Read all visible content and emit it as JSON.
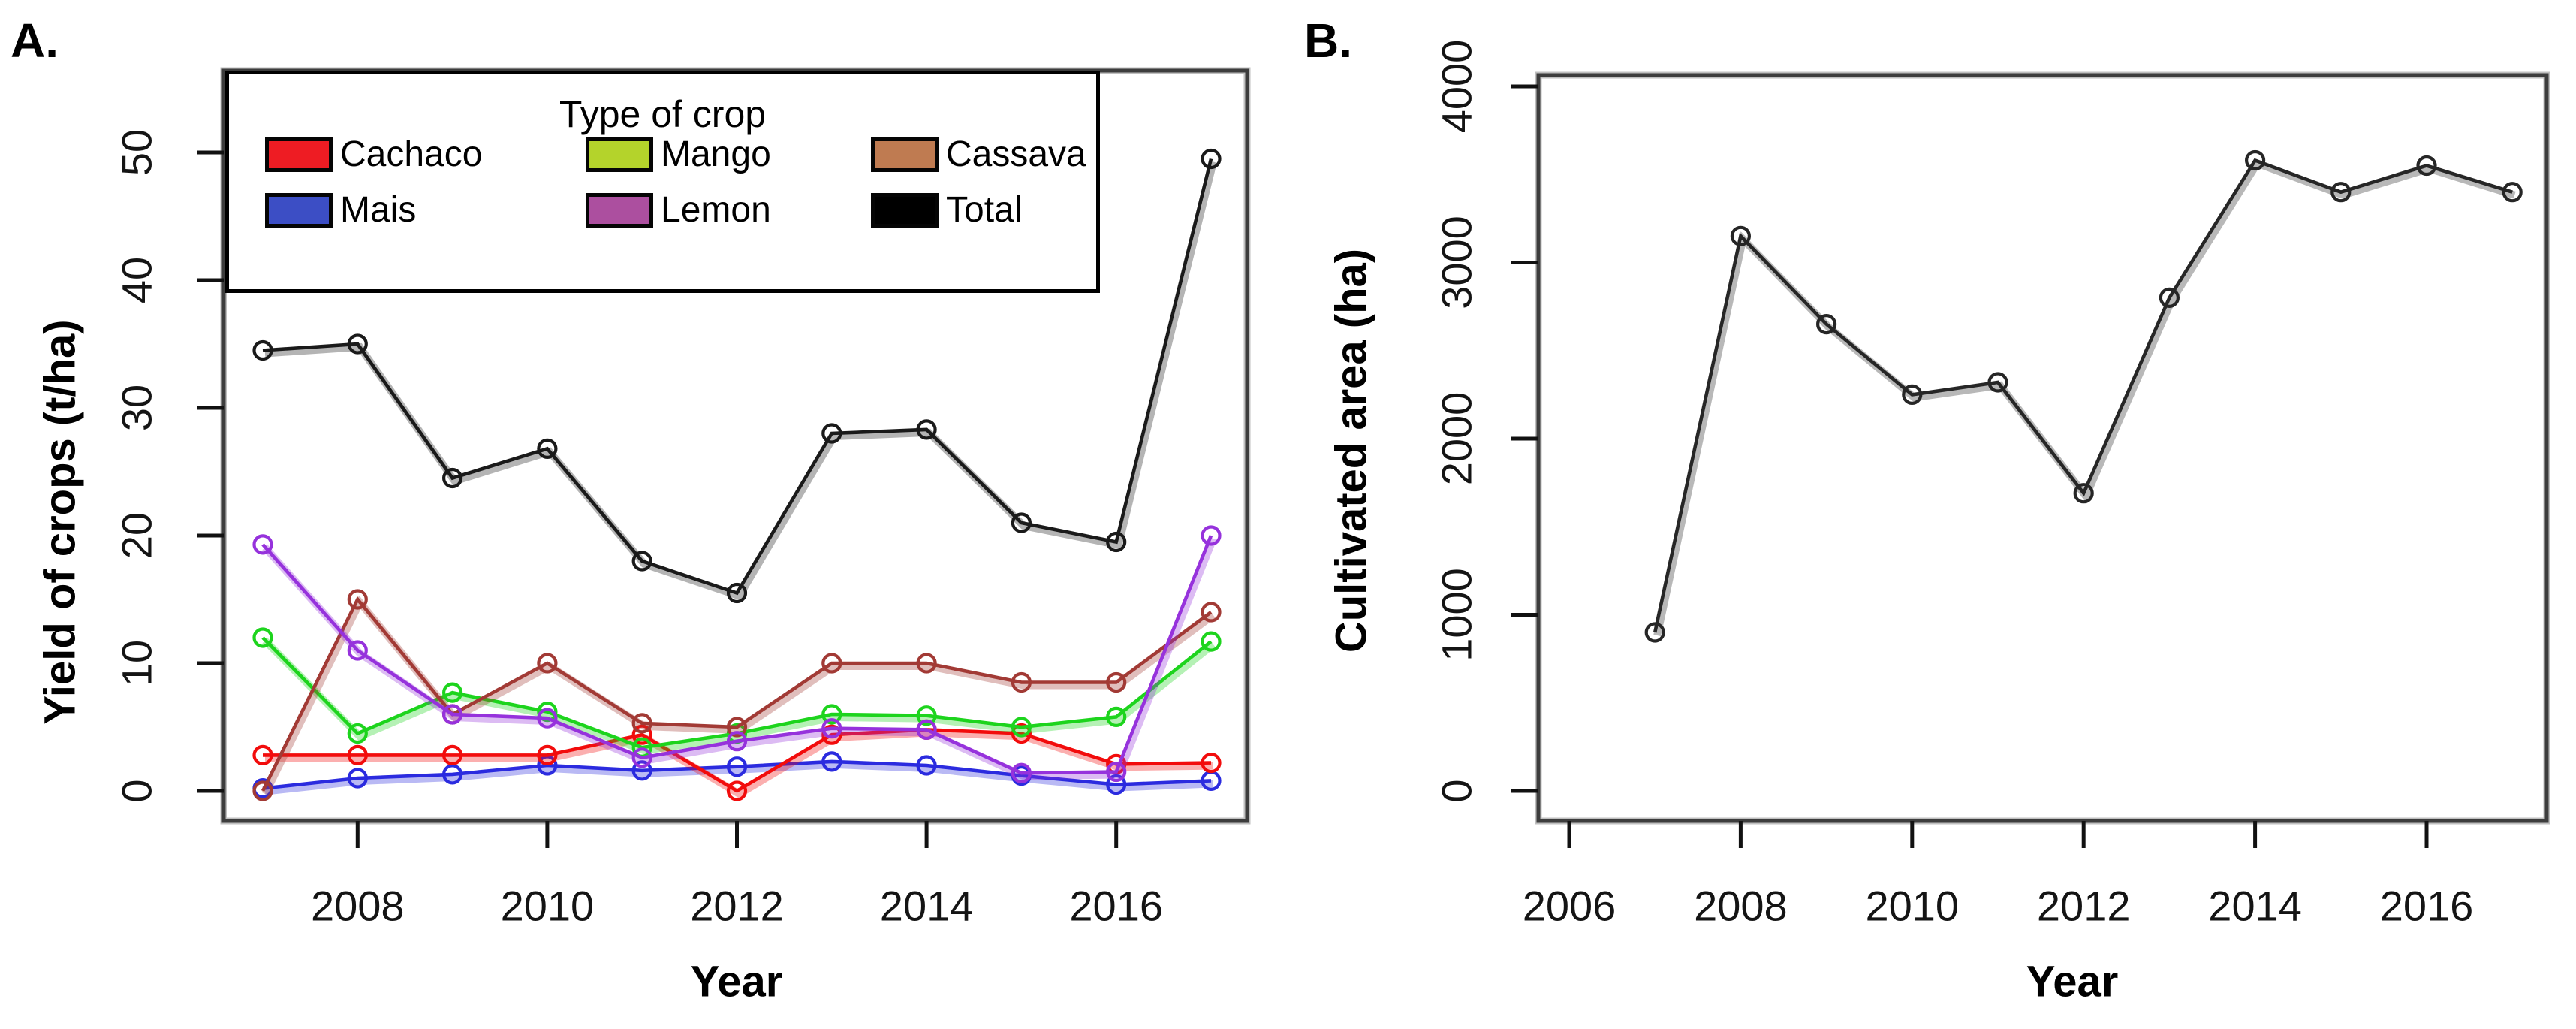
{
  "figure": {
    "background": "#ffffff",
    "panels": [
      {
        "panel_label": "A.",
        "xlabel": "Year",
        "ylabel": "Yield of crops (t/ha)",
        "legend": {
          "title": "Type of crop",
          "entries": [
            {
              "label": "Cachaco",
              "color": "#ee1c23"
            },
            {
              "label": "Mango",
              "color": "#b4d32b"
            },
            {
              "label": "Cassava",
              "color": "#bf7b51"
            },
            {
              "label": "Mais",
              "color": "#3c4ec5"
            },
            {
              "label": "Lemon",
              "color": "#ac4f9f"
            },
            {
              "label": "Total",
              "color": "#000000"
            }
          ]
        }
      },
      {
        "panel_label": "B.",
        "xlabel": "Year",
        "ylabel": "Cultivated area (ha)"
      }
    ]
  },
  "chart_data": [
    {
      "type": "line",
      "xlabel": "Year",
      "ylabel": "Yield of crops (t/ha)",
      "x": [
        2007,
        2008,
        2009,
        2010,
        2011,
        2012,
        2013,
        2014,
        2015,
        2016,
        2017
      ],
      "xticks": [
        2008,
        2010,
        2012,
        2014,
        2016
      ],
      "yticks": [
        0,
        10,
        20,
        30,
        40,
        50
      ],
      "xlim": [
        2006.6,
        2017.4
      ],
      "ylim": [
        -2.3,
        56.4
      ],
      "grid": false,
      "marker": "open-circle",
      "legend_title": "Type of crop",
      "legend_position": "top-inside",
      "series": [
        {
          "name": "Cachaco",
          "line_color": "#f20c0c",
          "legend_color": "#ee1c23",
          "values": [
            2.8,
            2.8,
            2.8,
            2.8,
            4.4,
            0.0,
            4.4,
            4.8,
            4.5,
            2.1,
            2.2
          ]
        },
        {
          "name": "Mais",
          "line_color": "#2b2bdf",
          "legend_color": "#3c4ec5",
          "values": [
            0.2,
            1.0,
            1.3,
            2.0,
            1.6,
            1.9,
            2.3,
            2.0,
            1.2,
            0.5,
            0.8
          ]
        },
        {
          "name": "Mango",
          "line_color": "#1dd41d",
          "legend_color": "#b4d32b",
          "values": [
            12.0,
            4.5,
            7.7,
            6.2,
            3.4,
            4.5,
            6.0,
            5.9,
            5.0,
            5.8,
            11.7
          ]
        },
        {
          "name": "Lemon",
          "line_color": "#9632dc",
          "legend_color": "#ac4f9f",
          "values": [
            19.3,
            11.0,
            6.0,
            5.7,
            2.6,
            3.9,
            4.9,
            4.8,
            1.4,
            1.5,
            20.0
          ]
        },
        {
          "name": "Cassava",
          "line_color": "#a23a35",
          "legend_color": "#bf7b51",
          "values": [
            0.0,
            15.0,
            6.0,
            10.0,
            5.3,
            5.0,
            10.0,
            10.0,
            8.5,
            8.5,
            14.0
          ]
        },
        {
          "name": "Total",
          "line_color": "#1a1a1a",
          "legend_color": "#000000",
          "values": [
            34.5,
            35.0,
            24.5,
            26.8,
            18.0,
            15.5,
            28.0,
            28.3,
            21.0,
            19.5,
            49.5
          ]
        }
      ]
    },
    {
      "type": "line",
      "xlabel": "Year",
      "ylabel": "Cultivated area (ha)",
      "x": [
        2007,
        2008,
        2009,
        2010,
        2011,
        2012,
        2013,
        2014,
        2015,
        2016,
        2017
      ],
      "xticks": [
        2006,
        2008,
        2010,
        2012,
        2014,
        2016
      ],
      "yticks": [
        0,
        1000,
        2000,
        3000,
        4000
      ],
      "xlim": [
        2005.6,
        2017.4
      ],
      "ylim": [
        -60,
        4065
      ],
      "grid": false,
      "marker": "open-circle",
      "series": [
        {
          "name": "Cultivated area",
          "line_color": "#262626",
          "legend_color": "#262626",
          "values": [
            900,
            3150,
            2650,
            2250,
            2320,
            1690,
            2800,
            3580,
            3400,
            3550,
            3400
          ]
        }
      ]
    }
  ]
}
